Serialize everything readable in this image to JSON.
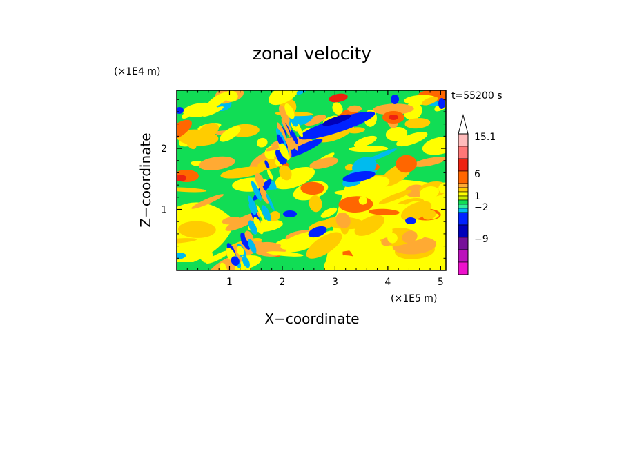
{
  "chart_data": {
    "type": "heatmap",
    "title": "zonal velocity",
    "xlabel": "X−coordinate",
    "ylabel": "Z−coordinate",
    "x_unit": "(×1E5 m)",
    "y_unit": "(×1E4 m)",
    "time_label": "t=55200 s",
    "xlim": [
      0,
      5.1
    ],
    "ylim": [
      0,
      2.95
    ],
    "x_ticks": [
      "1",
      "2",
      "3",
      "4",
      "5"
    ],
    "x_tick_values": [
      1,
      2,
      3,
      4,
      5
    ],
    "y_ticks": [
      "1",
      "2"
    ],
    "y_tick_values": [
      1,
      2
    ],
    "colorbar": {
      "labels": [
        "15.1",
        "6",
        "1",
        "−2",
        "−9"
      ],
      "label_values": [
        15.1,
        6,
        1,
        -2,
        -9
      ],
      "levels": [
        -15,
        -12,
        -9,
        -6,
        -3,
        -2,
        -1,
        0,
        1,
        2,
        3,
        6,
        9,
        12,
        15.1
      ],
      "colors": [
        "#ee11cc",
        "#bb11bb",
        "#771199",
        "#0000bb",
        "#0022ff",
        "#00bbee",
        "#33ee99",
        "#11dd55",
        "#ccee00",
        "#ffff00",
        "#ffcc00",
        "#ffaa33",
        "#ff6600",
        "#ee2211",
        "#ff7777",
        "#ffbbbb"
      ],
      "over_arrow": "#ffffff"
    },
    "grid": false
  }
}
